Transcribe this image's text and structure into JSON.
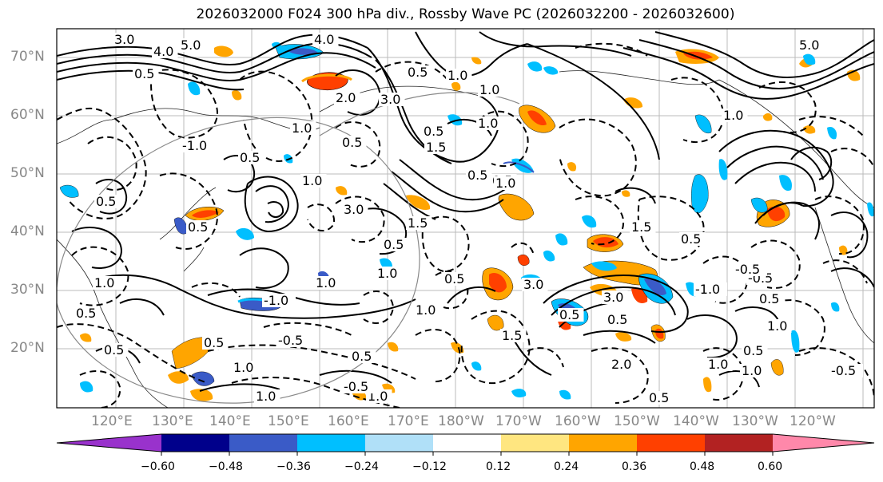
{
  "title": "2026032000 F024 300 hPa div., Rossby Wave PC (2026032200 - 2026032600)",
  "lat_labels": [
    "70°N",
    "60°N",
    "50°N",
    "40°N",
    "30°N",
    "20°N"
  ],
  "lon_labels": [
    "120°E",
    "130°E",
    "140°E",
    "150°E",
    "160°E",
    "170°E",
    "180°W",
    "170°W",
    "160°W",
    "150°W",
    "140°W",
    "130°W",
    "120°W"
  ],
  "colorbar": {
    "ticks": [
      "−0.60",
      "−0.48",
      "−0.36",
      "−0.24",
      "−0.12",
      "0.12",
      "0.24",
      "0.36",
      "0.48",
      "0.60"
    ],
    "colors": [
      "#9932cc",
      "#00008b",
      "#3a5bc7",
      "#00bfff",
      "#b0e0f8",
      "#ffffff",
      "#ffe680",
      "#ffa500",
      "#ff4000",
      "#b22222",
      "#ff88aa"
    ]
  },
  "contour_labels": [
    "5.0",
    "4.0",
    "3.0",
    "2.0",
    "3.0",
    "1.5",
    "0.5",
    "1.0",
    "1.0",
    "0.5",
    "0.5",
    "0.5",
    "3.0",
    "1.5",
    "1.0",
    "0.5",
    "0.5",
    "0.5",
    "1.0",
    "-1.0",
    "1.0",
    "0.5",
    "-0.5",
    "0.5",
    "1.0",
    "1.0",
    "1.5",
    "2.0",
    "1.0",
    "0.5",
    "-0.5",
    "1.0",
    "0.5",
    "1.0",
    "1.0",
    "1.0",
    "3.0",
    "-1.0",
    "1.5",
    "0.5",
    "0.5",
    "-0.5",
    "0.5",
    "1.0",
    "0.5",
    "1.0",
    "0.5",
    "1.0",
    "0.5",
    "1.0",
    "-0.5",
    "0.5",
    "-1.0",
    "0.5",
    "1.0",
    "0.5",
    "3.0",
    "4.0",
    "-0.5",
    "0.5",
    "5.0"
  ]
}
